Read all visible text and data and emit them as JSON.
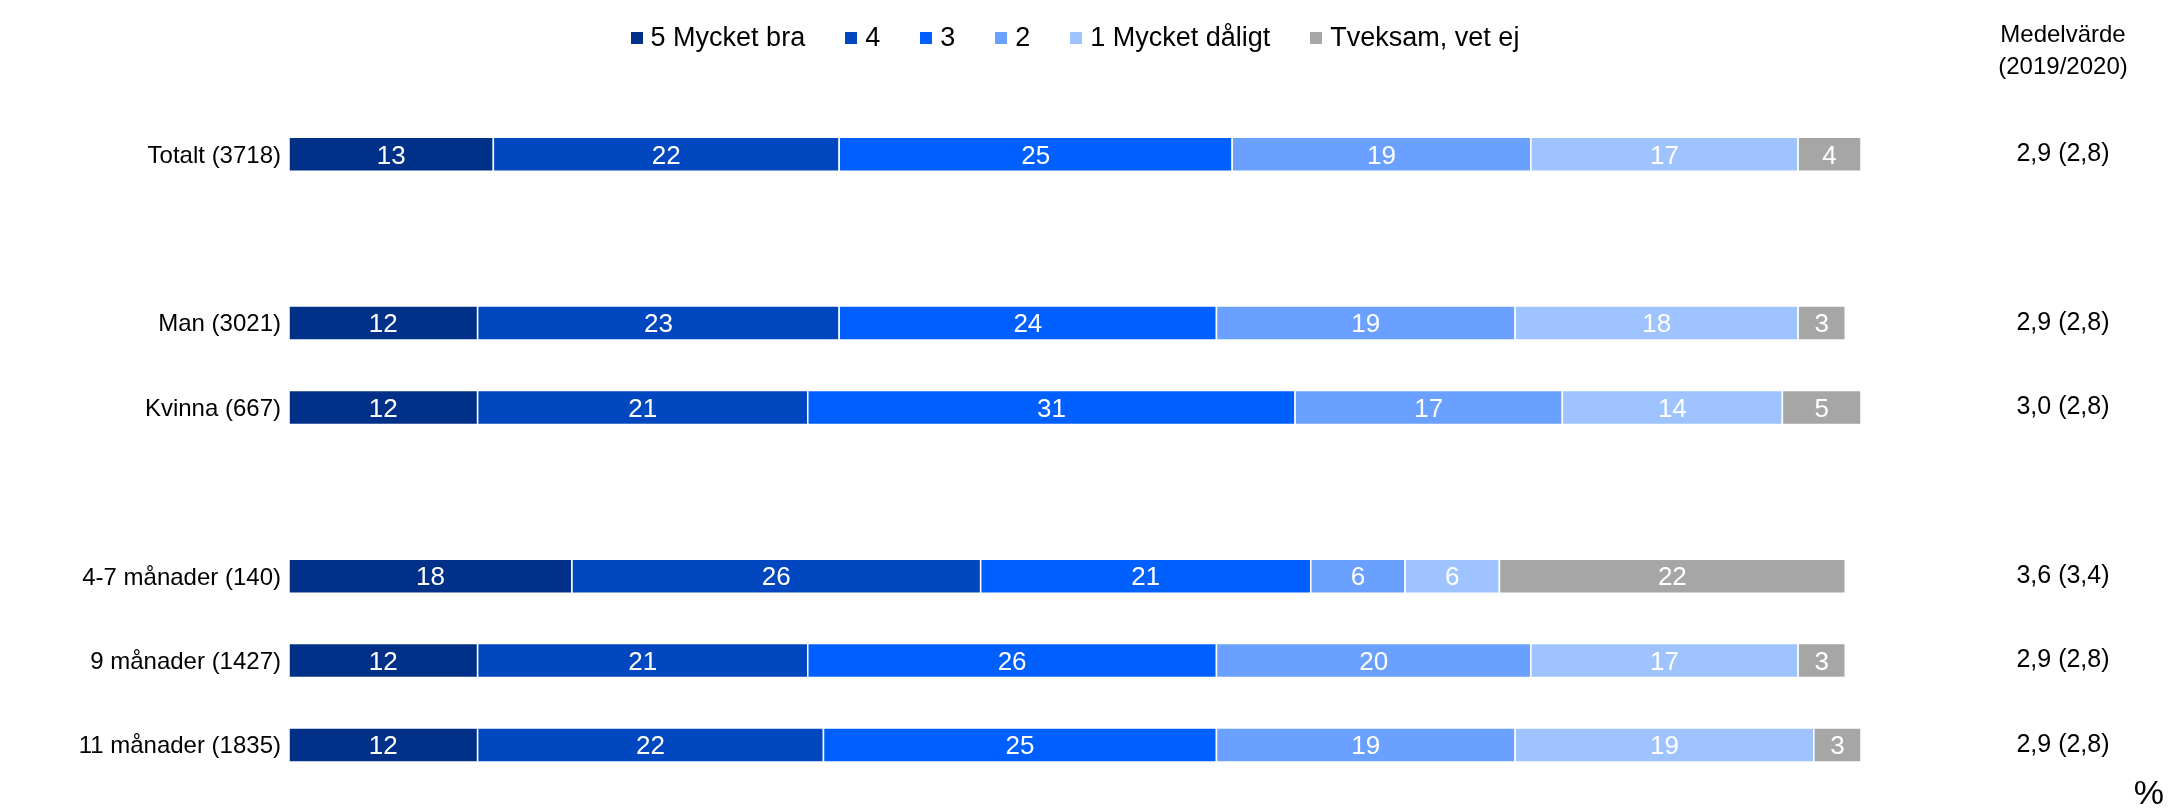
{
  "chart_data": {
    "type": "bar",
    "orientation": "horizontal",
    "stacked": true,
    "data_labels": true,
    "legend": "top",
    "tick_labels": "y",
    "xlim": [
      0,
      100
    ],
    "categories": [
      "Totalt (3718)",
      null,
      "Man (3021)",
      "Kvinna (667)",
      null,
      "4-7 månader (140)",
      "9 månader (1427)",
      "11 månader (1835)"
    ],
    "series": [
      {
        "name": "5 Mycket bra",
        "color": "#003087",
        "values": [
          13,
          null,
          12,
          12,
          null,
          18,
          12,
          12
        ]
      },
      {
        "name": "4",
        "color": "#0047c0",
        "values": [
          22,
          null,
          23,
          21,
          null,
          26,
          21,
          22
        ]
      },
      {
        "name": "3",
        "color": "#0060ff",
        "values": [
          25,
          null,
          24,
          31,
          null,
          21,
          26,
          25
        ]
      },
      {
        "name": "2",
        "color": "#6aa0ff",
        "values": [
          19,
          null,
          19,
          17,
          null,
          6,
          20,
          19
        ]
      },
      {
        "name": "1 Mycket dåligt",
        "color": "#9ec3ff",
        "values": [
          17,
          null,
          18,
          14,
          null,
          6,
          17,
          19
        ]
      },
      {
        "name": "Tveksam, vet ej",
        "color": "#a6a6a6",
        "values": [
          4,
          null,
          3,
          5,
          null,
          22,
          3,
          3
        ]
      }
    ],
    "annotations": [
      "Medelvärde\n(2019/2020)",
      "2,9 (2,8)",
      "2,9 (2,8)",
      "3,0 (2,8)",
      "3,6 (3,4)",
      "2,9 (2,8)",
      "2,9 (2,8)",
      "%"
    ]
  }
}
